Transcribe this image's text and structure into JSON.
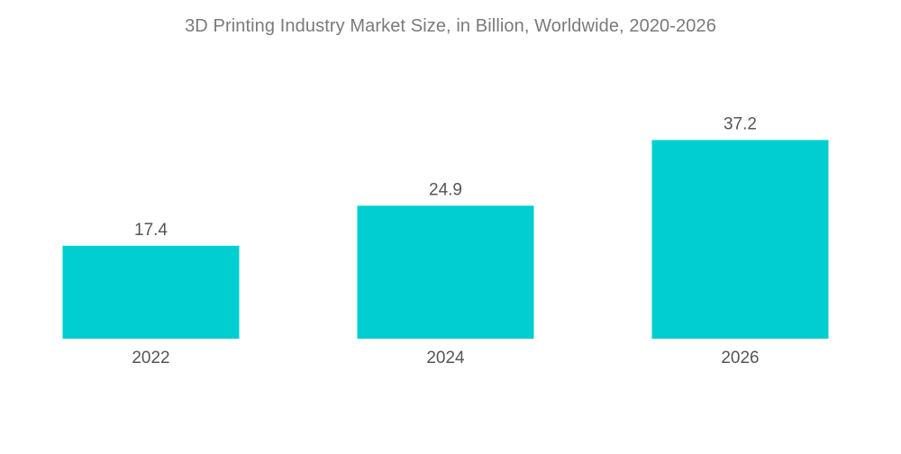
{
  "chart_data": {
    "type": "bar",
    "title": "3D Printing Industry Market Size, in Billion, Worldwide, 2020-2026",
    "categories": [
      "2022",
      "2024",
      "2026"
    ],
    "values": [
      17.4,
      24.9,
      37.2
    ],
    "xlabel": "",
    "ylabel": "",
    "ylim": [
      0,
      40
    ],
    "grid": false,
    "legend": "none",
    "bar_color": "#00ced1"
  }
}
